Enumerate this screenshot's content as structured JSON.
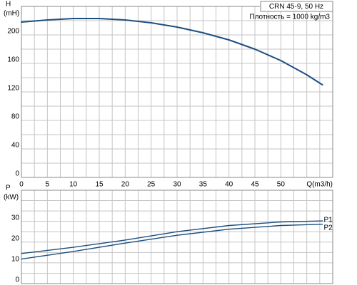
{
  "chart_data": [
    {
      "type": "line",
      "ylabel": "H",
      "yunit": "(mH)",
      "xlabel": "Q(m3/h)",
      "title": "CRN 45-9, 50 Hz",
      "subtitle": "Плотность = 1000 kg/m3",
      "x": [
        0,
        5,
        10,
        15,
        20,
        25,
        30,
        35,
        40,
        45,
        50,
        55,
        58
      ],
      "series": [
        {
          "name": "H",
          "color": "#1d4f7e",
          "values": [
            218,
            221,
            223,
            223,
            221,
            217,
            211,
            203,
            193,
            180,
            164,
            144,
            130
          ]
        }
      ],
      "xlim": [
        0,
        60
      ],
      "xticks": [
        0,
        5,
        10,
        15,
        20,
        25,
        30,
        35,
        40,
        45,
        50
      ],
      "ylim": [
        0,
        240
      ],
      "yticks": [
        0,
        40,
        80,
        120,
        160,
        200
      ],
      "grid": true
    },
    {
      "type": "line",
      "ylabel": "P",
      "yunit": "(kW)",
      "x": [
        0,
        10,
        20,
        30,
        40,
        50,
        58
      ],
      "series": [
        {
          "name": "P1",
          "color": "#1d4f7e",
          "values": [
            14.5,
            17.5,
            21,
            25,
            28,
            29.7,
            30.2
          ]
        },
        {
          "name": "P2",
          "color": "#1d4f7e",
          "values": [
            11.8,
            15.5,
            19.5,
            23.3,
            26.2,
            28,
            28.6
          ]
        }
      ],
      "xlim": [
        0,
        60
      ],
      "xticks": [
        0,
        5,
        10,
        15,
        20,
        25,
        30,
        35,
        40,
        45,
        50
      ],
      "ylim": [
        0,
        45
      ],
      "yticks": [
        0,
        10,
        20,
        30
      ],
      "grid": true
    }
  ]
}
